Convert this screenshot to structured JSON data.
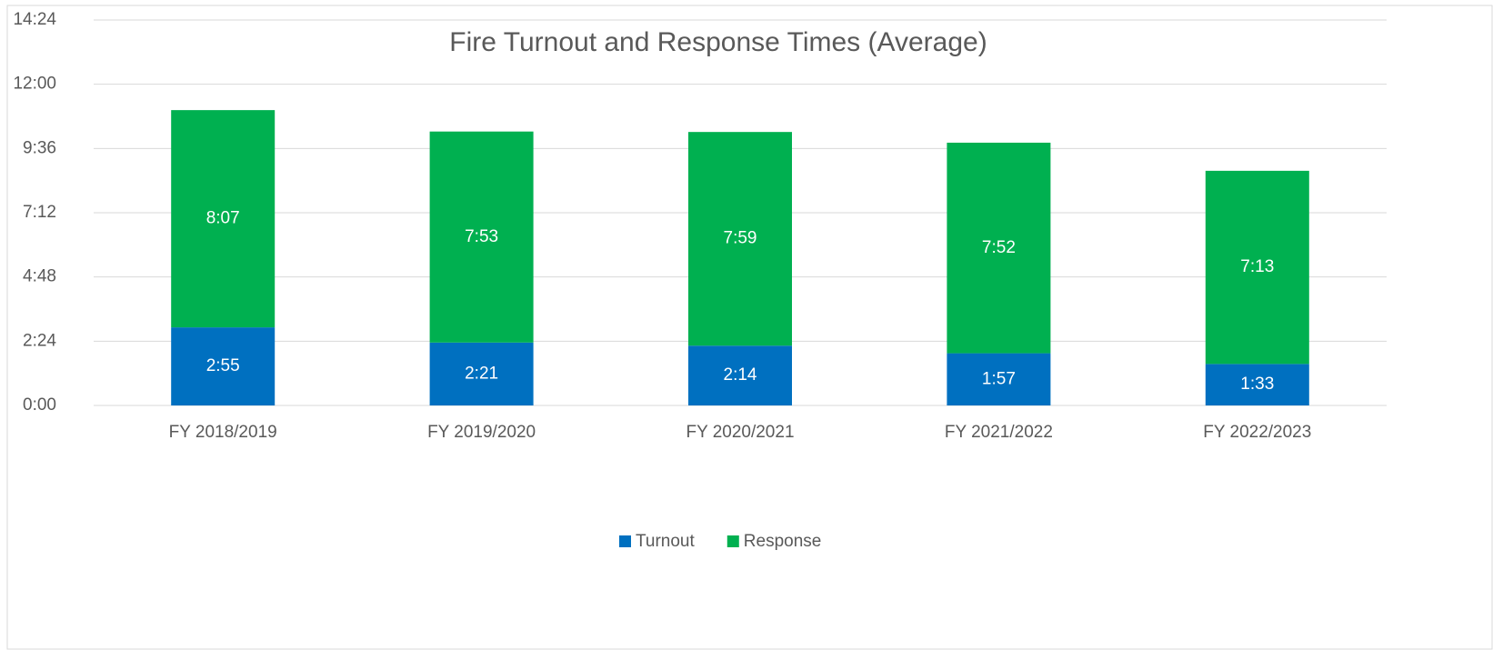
{
  "chart_data": {
    "type": "stacked_bar",
    "title": "Fire Turnout and Response Times (Average)",
    "categories": [
      "FY 2018/2019",
      "FY 2019/2020",
      "FY 2020/2021",
      "FY 2021/2022",
      "FY 2022/2023"
    ],
    "series": [
      {
        "name": "Turnout",
        "color": "#0070c0",
        "values": [
          175,
          141,
          134,
          117,
          93
        ],
        "value_labels": [
          "2:55",
          "2:21",
          "2:14",
          "1:57",
          "1:33"
        ]
      },
      {
        "name": "Response",
        "color": "#00b050",
        "values": [
          487,
          473,
          479,
          472,
          433
        ],
        "value_labels": [
          "8:07",
          "7:53",
          "7:59",
          "7:52",
          "7:13"
        ]
      }
    ],
    "ylim": [
      0,
      864
    ],
    "yticks": [
      {
        "value": 0,
        "label": "0:00"
      },
      {
        "value": 144,
        "label": "2:24"
      },
      {
        "value": 288,
        "label": "4:48"
      },
      {
        "value": 432,
        "label": "7:12"
      },
      {
        "value": 576,
        "label": "9:36"
      },
      {
        "value": 720,
        "label": "12:00"
      },
      {
        "value": 864,
        "label": "14:24"
      }
    ],
    "grid": true,
    "legend": "bottom"
  }
}
